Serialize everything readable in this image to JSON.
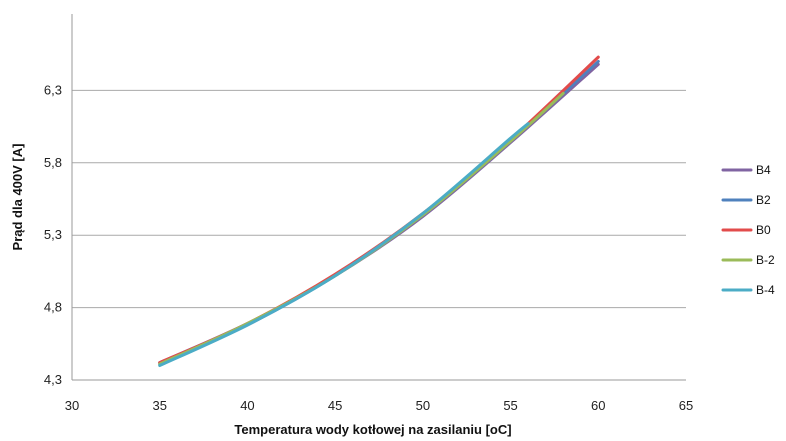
{
  "chart_data": {
    "type": "line",
    "title": "",
    "xlabel": "Temperatura wody kotłowej na zasilaniu [oC]",
    "ylabel": "Prąd dla 400V [A]",
    "xlim": [
      30,
      65
    ],
    "ylim": [
      4.3,
      6.8
    ],
    "x_ticks": [
      "30",
      "35",
      "40",
      "45",
      "50",
      "55",
      "60",
      "65"
    ],
    "y_ticks": [
      "4,3",
      "4,8",
      "5,3",
      "5,8",
      "6,3"
    ],
    "grid": "horizontal",
    "legend_position": "right",
    "series": [
      {
        "name": "B4",
        "color": "#8064a2",
        "x": [
          35,
          40,
          45,
          50,
          55,
          60
        ],
        "y": [
          4.42,
          4.69,
          5.02,
          5.43,
          5.94,
          6.48
        ]
      },
      {
        "name": "B2",
        "color": "#4f81bd",
        "x": [
          35,
          40,
          45,
          50,
          55,
          60
        ],
        "y": [
          4.41,
          4.68,
          5.02,
          5.44,
          5.95,
          6.5
        ]
      },
      {
        "name": "B0",
        "color": "#e24b4b",
        "x": [
          35,
          40,
          45,
          50,
          55,
          60
        ],
        "y": [
          4.42,
          4.69,
          5.03,
          5.45,
          5.96,
          6.53
        ]
      },
      {
        "name": "B-2",
        "color": "#9bbb59",
        "x": [
          35,
          40,
          45,
          50,
          55,
          58
        ],
        "y": [
          4.41,
          4.69,
          5.02,
          5.44,
          5.95,
          6.28
        ]
      },
      {
        "name": "B-4",
        "color": "#4bacc6",
        "x": [
          35,
          40,
          45,
          50,
          55,
          56
        ],
        "y": [
          4.4,
          4.68,
          5.02,
          5.45,
          5.97,
          6.07
        ]
      }
    ]
  }
}
